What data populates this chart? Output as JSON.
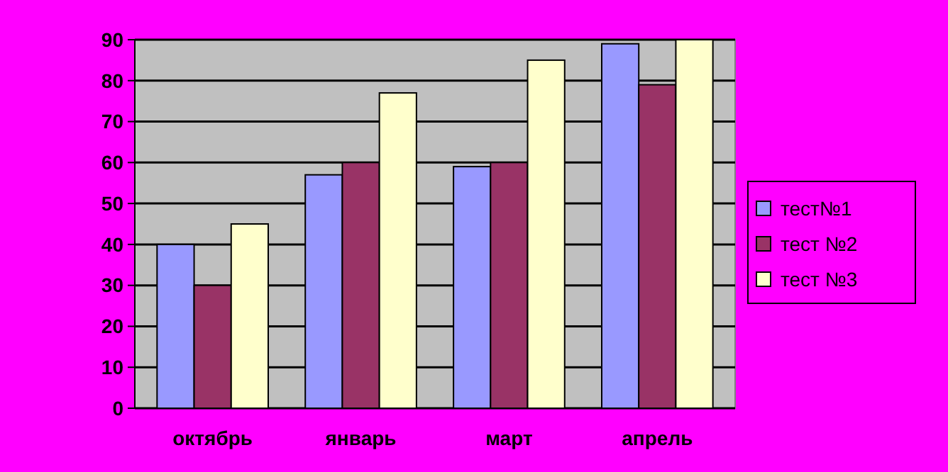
{
  "chart_data": {
    "type": "bar",
    "categories": [
      "октябрь",
      "январь",
      "март",
      "апрель"
    ],
    "series": [
      {
        "name": "тест№1",
        "color": "#9999ff",
        "values": [
          40,
          57,
          59,
          89
        ]
      },
      {
        "name": "тест №2",
        "color": "#993366",
        "values": [
          30,
          60,
          60,
          79
        ]
      },
      {
        "name": "тест №3",
        "color": "#ffffcc",
        "values": [
          45,
          77,
          85,
          90
        ]
      }
    ],
    "ylim": [
      0,
      90
    ],
    "yticks": [
      0,
      10,
      20,
      30,
      40,
      50,
      60,
      70,
      80,
      90
    ],
    "grid": "y",
    "legend": "right"
  }
}
